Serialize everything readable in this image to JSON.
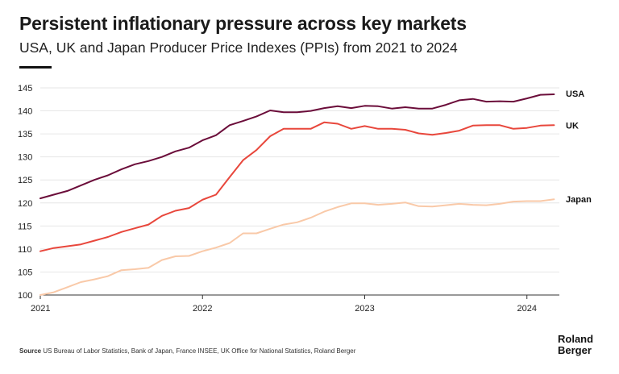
{
  "header": {
    "title": "Persistent inflationary pressure across key markets",
    "subtitle": "USA, UK and Japan Producer Price Indexes (PPIs) from 2021 to 2024"
  },
  "footer": {
    "source_label": "Source",
    "source_text": "US Bureau of Labor Statistics, Bank of Japan, France INSEE, UK Office for National Statistics, Roland Berger",
    "logo_line1": "Roland",
    "logo_line2": "Berger"
  },
  "chart_data": {
    "type": "line",
    "title": "",
    "xlabel": "",
    "ylabel": "",
    "ylim": [
      100,
      145
    ],
    "yticks": [
      100,
      105,
      110,
      115,
      120,
      125,
      130,
      135,
      140,
      145
    ],
    "xticks": [
      {
        "label": "2021",
        "x": 2021.0
      },
      {
        "label": "2022",
        "x": 2022.0
      },
      {
        "label": "2023",
        "x": 2023.0
      },
      {
        "label": "2024",
        "x": 2024.0
      }
    ],
    "xlim": [
      2021.0,
      2024.2
    ],
    "grid": "horizontal",
    "legend": "end-of-line labels",
    "series": [
      {
        "name": "USA",
        "color": "#6b0d3a",
        "x": [
          2021.0,
          2021.083,
          2021.167,
          2021.25,
          2021.333,
          2021.417,
          2021.5,
          2021.583,
          2021.667,
          2021.75,
          2021.833,
          2021.917,
          2022.0,
          2022.083,
          2022.167,
          2022.25,
          2022.333,
          2022.417,
          2022.5,
          2022.583,
          2022.667,
          2022.75,
          2022.833,
          2022.917,
          2023.0,
          2023.083,
          2023.167,
          2023.25,
          2023.333,
          2023.417,
          2023.5,
          2023.583,
          2023.667,
          2023.75,
          2023.833,
          2023.917,
          2024.0,
          2024.083,
          2024.167
        ],
        "values": [
          121.0,
          121.8,
          122.6,
          123.8,
          125.0,
          126.0,
          127.3,
          128.4,
          129.1,
          130.0,
          131.2,
          132.0,
          133.6,
          134.7,
          136.9,
          137.8,
          138.8,
          140.1,
          139.7,
          139.7,
          140.0,
          140.6,
          141.0,
          140.6,
          141.1,
          141.0,
          140.5,
          140.8,
          140.5,
          140.5,
          141.3,
          142.3,
          142.6,
          142.0,
          142.1,
          142.0,
          142.7,
          143.5,
          143.6
        ]
      },
      {
        "name": "UK",
        "color": "#e8473c",
        "x": [
          2021.0,
          2021.083,
          2021.167,
          2021.25,
          2021.333,
          2021.417,
          2021.5,
          2021.583,
          2021.667,
          2021.75,
          2021.833,
          2021.917,
          2022.0,
          2022.083,
          2022.167,
          2022.25,
          2022.333,
          2022.417,
          2022.5,
          2022.583,
          2022.667,
          2022.75,
          2022.833,
          2022.917,
          2023.0,
          2023.083,
          2023.167,
          2023.25,
          2023.333,
          2023.417,
          2023.5,
          2023.583,
          2023.667,
          2023.75,
          2023.833,
          2023.917,
          2024.0,
          2024.083,
          2024.167
        ],
        "values": [
          109.5,
          110.2,
          110.6,
          111.0,
          111.8,
          112.6,
          113.7,
          114.5,
          115.3,
          117.2,
          118.3,
          118.9,
          120.7,
          121.8,
          125.6,
          129.3,
          131.5,
          134.5,
          136.1,
          136.1,
          136.1,
          137.5,
          137.2,
          136.1,
          136.7,
          136.1,
          136.1,
          135.9,
          135.1,
          134.8,
          135.2,
          135.7,
          136.8,
          136.9,
          136.9,
          136.1,
          136.3,
          136.8,
          136.9
        ]
      },
      {
        "name": "Japan",
        "color": "#f9c9a8",
        "x": [
          2021.0,
          2021.083,
          2021.167,
          2021.25,
          2021.333,
          2021.417,
          2021.5,
          2021.583,
          2021.667,
          2021.75,
          2021.833,
          2021.917,
          2022.0,
          2022.083,
          2022.167,
          2022.25,
          2022.333,
          2022.417,
          2022.5,
          2022.583,
          2022.667,
          2022.75,
          2022.833,
          2022.917,
          2023.0,
          2023.083,
          2023.167,
          2023.25,
          2023.333,
          2023.417,
          2023.5,
          2023.583,
          2023.667,
          2023.75,
          2023.833,
          2023.917,
          2024.0,
          2024.083,
          2024.167
        ],
        "values": [
          100.0,
          100.6,
          101.7,
          102.8,
          103.4,
          104.1,
          105.4,
          105.6,
          105.9,
          107.6,
          108.4,
          108.5,
          109.5,
          110.3,
          111.3,
          113.4,
          113.4,
          114.4,
          115.3,
          115.8,
          116.8,
          118.1,
          119.1,
          119.9,
          119.9,
          119.6,
          119.8,
          120.1,
          119.3,
          119.2,
          119.5,
          119.8,
          119.6,
          119.5,
          119.8,
          120.3,
          120.4,
          120.4,
          120.8
        ]
      }
    ]
  }
}
